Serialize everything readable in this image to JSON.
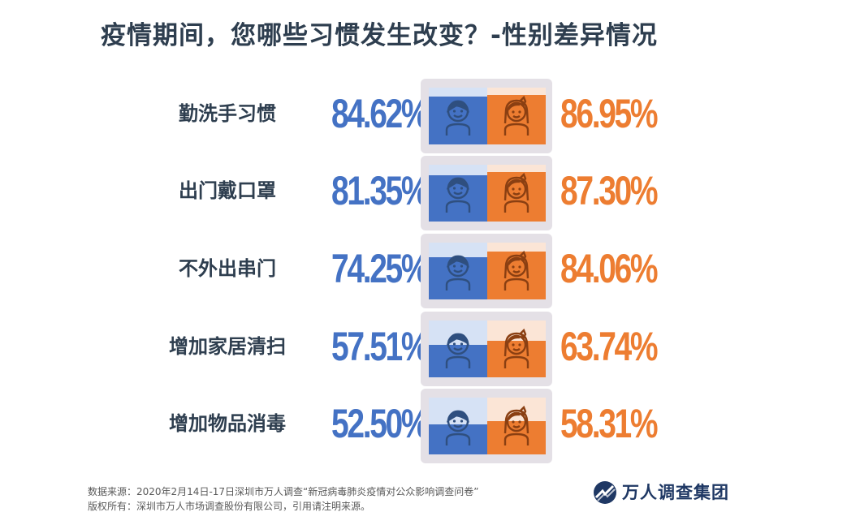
{
  "title": "疫情期间，您哪些习惯发生改变？-性别差异情况",
  "chart_data": {
    "type": "bar",
    "title": "疫情期间，您哪些习惯发生改变？-性别差异情况",
    "categories": [
      "勤洗手习惯",
      "出门戴口罩",
      "不外出串门",
      "增加家居清扫",
      "增加物品消毒"
    ],
    "series": [
      {
        "values": [
          84.62,
          81.35,
          74.25,
          57.51,
          52.5
        ],
        "labels": [
          "84.62%",
          "81.35%",
          "74.25%",
          "57.51%",
          "52.50%"
        ]
      },
      {
        "values": [
          86.95,
          87.3,
          84.06,
          63.74,
          58.31
        ],
        "labels": [
          "86.95%",
          "87.30%",
          "84.06%",
          "63.74%",
          "58.31%"
        ]
      }
    ],
    "ylim": [
      0,
      100
    ],
    "colors": {
      "male": "#4472c4",
      "female": "#ed7d31"
    }
  },
  "footer": {
    "source": "数据来源：2020年2月14日-17日深圳市万人调查“新冠病毒肺炎疫情对公众影响调查问卷”",
    "copyright": "版权所有：深圳市万人市场调查股份有限公司，引用请注明来源。"
  },
  "logo": {
    "text": "万人调查集团"
  }
}
